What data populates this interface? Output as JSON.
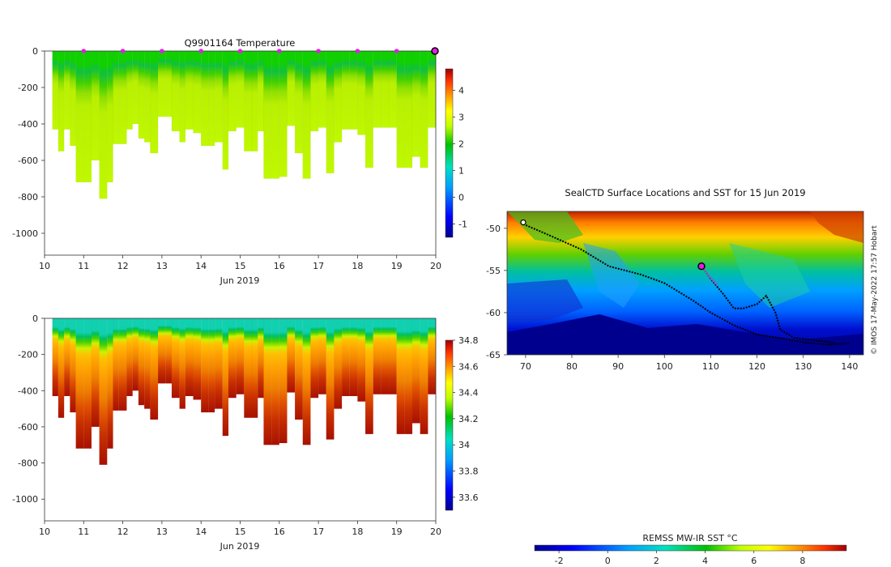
{
  "chart_data": [
    {
      "type": "heatmap",
      "title": "Q9901164  Temperature",
      "x_ticks": [
        "10",
        "11",
        "12",
        "13",
        "14",
        "15",
        "16",
        "17",
        "18",
        "19",
        "20"
      ],
      "xlabel": "Jun 2019",
      "y_ticks": [
        "0",
        "-200",
        "-400",
        "-600",
        "-800",
        "-1000"
      ],
      "xlim": [
        10,
        20
      ],
      "ylim": [
        -1120,
        0
      ],
      "profile_days": [
        10.2,
        10.35,
        10.5,
        10.65,
        10.8,
        11.0,
        11.2,
        11.4,
        11.6,
        11.75,
        11.9,
        12.1,
        12.25,
        12.4,
        12.55,
        12.7,
        12.9,
        13.1,
        13.25,
        13.45,
        13.6,
        13.8,
        14.0,
        14.2,
        14.35,
        14.55,
        14.7,
        14.9,
        15.1,
        15.3,
        15.45,
        15.6,
        15.8,
        16.0,
        16.2,
        16.4,
        16.6,
        16.8,
        17.0,
        17.2,
        17.4,
        17.6,
        17.8,
        18.0,
        18.2,
        18.4,
        18.6,
        18.8,
        19.0,
        19.2,
        19.4,
        19.6,
        19.8,
        20.0
      ],
      "profile_max_depth": [
        430,
        550,
        430,
        520,
        720,
        720,
        600,
        810,
        720,
        510,
        510,
        430,
        400,
        480,
        500,
        560,
        360,
        360,
        440,
        500,
        430,
        450,
        520,
        520,
        500,
        650,
        440,
        420,
        550,
        550,
        440,
        700,
        700,
        690,
        410,
        560,
        700,
        440,
        420,
        670,
        500,
        430,
        430,
        460,
        640,
        420,
        420,
        420,
        640,
        640,
        580,
        640,
        420,
        420
      ],
      "float_marker_days": [
        11,
        12,
        13,
        14,
        15,
        16,
        17,
        18,
        19
      ],
      "colorbar": {
        "ticks": [
          "4",
          "3",
          "2",
          "1",
          "0",
          "-1"
        ],
        "range": [
          -1.5,
          4.8
        ]
      }
    },
    {
      "type": "heatmap",
      "title": "",
      "x_ticks": [
        "10",
        "11",
        "12",
        "13",
        "14",
        "15",
        "16",
        "17",
        "18",
        "19",
        "20"
      ],
      "xlabel": "Jun 2019",
      "y_ticks": [
        "0",
        "-200",
        "-400",
        "-600",
        "-800",
        "-1000"
      ],
      "xlim": [
        10,
        20
      ],
      "ylim": [
        -1120,
        0
      ],
      "colorbar": {
        "ticks": [
          "34.8",
          "34.6",
          "34.4",
          "34.2",
          "34",
          "33.8",
          "33.6"
        ],
        "range": [
          33.5,
          34.8
        ]
      }
    },
    {
      "type": "heatmap",
      "title": "SealCTD Surface Locations and SST for 15 Jun 2019",
      "x_ticks": [
        "70",
        "80",
        "90",
        "100",
        "110",
        "120",
        "130",
        "140"
      ],
      "y_ticks": [
        "-50",
        "-55",
        "-60",
        "-65"
      ],
      "xlim": [
        66,
        143
      ],
      "ylim": [
        -65,
        -48
      ],
      "track": [
        [
          69.5,
          -49.5
        ],
        [
          75,
          -50.8
        ],
        [
          82,
          -52.5
        ],
        [
          88,
          -54.5
        ],
        [
          95,
          -55.5
        ],
        [
          100,
          -56.5
        ],
        [
          106,
          -58.5
        ],
        [
          110,
          -60
        ],
        [
          115,
          -61.5
        ],
        [
          120,
          -62.6
        ],
        [
          126,
          -63.1
        ],
        [
          131,
          -63.6
        ],
        [
          136,
          -63.8
        ],
        [
          140,
          -63.6
        ]
      ],
      "track_branch": [
        [
          108,
          -54.5
        ],
        [
          110,
          -56
        ],
        [
          113,
          -58
        ],
        [
          115,
          -59.5
        ],
        [
          117,
          -59.5
        ],
        [
          120,
          -59
        ],
        [
          122,
          -58
        ],
        [
          124,
          -60
        ],
        [
          125,
          -62
        ],
        [
          128,
          -63
        ],
        [
          133,
          -63.3
        ],
        [
          137,
          -63.6
        ]
      ],
      "recent_track": [
        [
          108,
          -54.5
        ],
        [
          109.5,
          -55.6
        ],
        [
          111.5,
          -56.8
        ]
      ],
      "current_position": [
        108,
        -54.5
      ],
      "colorbar": {
        "label": "REMSS MW-IR SST °C",
        "ticks": [
          "-2",
          "0",
          "2",
          "4",
          "6",
          "8"
        ],
        "range": [
          -3,
          9.8
        ]
      },
      "credit": "© IMOS 17-May-2022 17:57 Hobart"
    }
  ],
  "colors": {
    "jet": [
      "#00008f",
      "#0000ff",
      "#00a0ff",
      "#00e0c0",
      "#00c000",
      "#60d000",
      "#c0ff00",
      "#ffff00",
      "#ffc000",
      "#ff8000",
      "#ff3000",
      "#c00000",
      "#800000"
    ],
    "marker": "#e020e0",
    "track": "#000000"
  }
}
